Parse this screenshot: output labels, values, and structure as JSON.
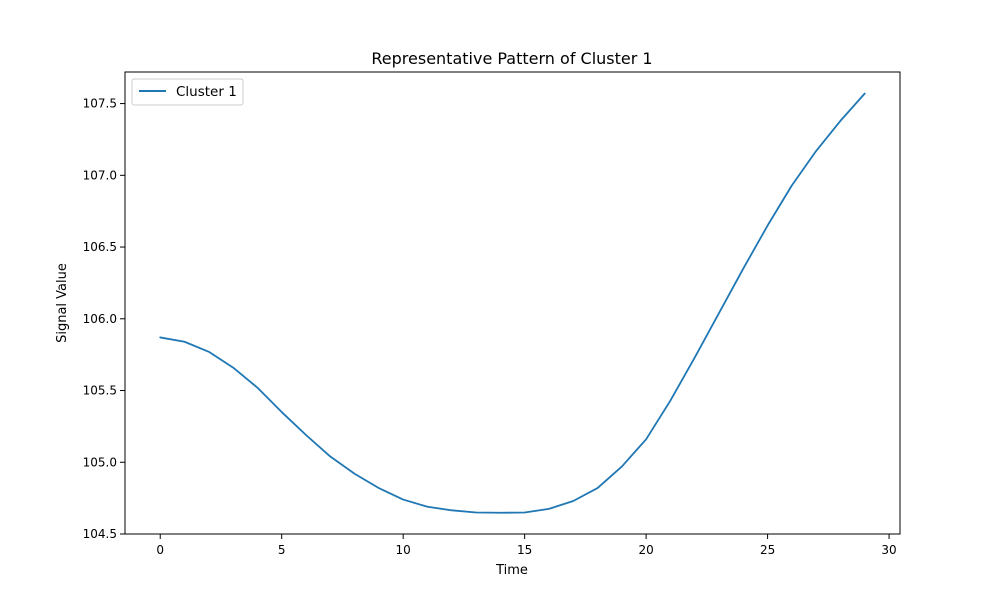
{
  "chart_data": {
    "type": "line",
    "title": "Representative Pattern of Cluster 1",
    "xlabel": "Time",
    "ylabel": "Signal Value",
    "xlim": [
      -1.45,
      30.45
    ],
    "ylim": [
      104.5,
      107.72
    ],
    "xticks": [
      0,
      5,
      10,
      15,
      20,
      25,
      30
    ],
    "xtick_labels": [
      "0",
      "5",
      "10",
      "15",
      "20",
      "25",
      "30"
    ],
    "yticks": [
      104.5,
      105.0,
      105.5,
      106.0,
      106.5,
      107.0,
      107.5
    ],
    "ytick_labels": [
      "104.5",
      "105.0",
      "105.5",
      "106.0",
      "106.5",
      "107.0",
      "107.5"
    ],
    "grid": false,
    "legend_position": "top-left",
    "series": [
      {
        "name": "Cluster 1",
        "color": "#1f77b4",
        "x": [
          0,
          1,
          2,
          3,
          4,
          5,
          6,
          7,
          8,
          9,
          10,
          11,
          12,
          13,
          14,
          15,
          16,
          17,
          18,
          19,
          20,
          21,
          22,
          23,
          24,
          25,
          26,
          27,
          28,
          29
        ],
        "y": [
          105.87,
          105.84,
          105.77,
          105.66,
          105.52,
          105.35,
          105.19,
          105.04,
          104.92,
          104.82,
          104.74,
          104.69,
          104.665,
          104.65,
          104.648,
          104.65,
          104.675,
          104.73,
          104.82,
          104.97,
          105.16,
          105.43,
          105.73,
          106.04,
          106.35,
          106.65,
          106.93,
          107.17,
          107.38,
          107.57
        ]
      }
    ]
  }
}
